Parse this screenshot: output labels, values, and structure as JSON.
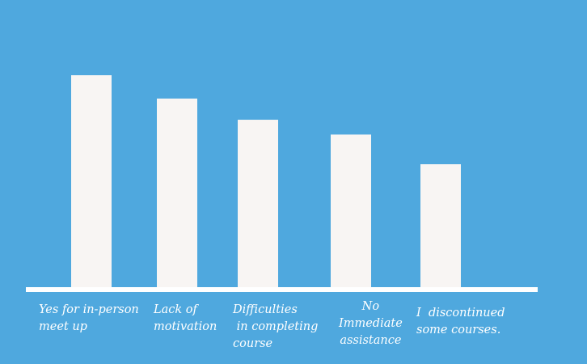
{
  "colors": {
    "background": "#4fa8de",
    "bar": "#f8f5f3",
    "axis": "#ffffff",
    "label": "#ffffff"
  },
  "chart_data": {
    "type": "bar",
    "title": "",
    "xlabel": "",
    "ylabel": "",
    "ylim": [
      0,
      100
    ],
    "grid": false,
    "legend": "none",
    "categories": [
      "Yes for in-person\nmeet up",
      "Lack of\nmotivation",
      "Difficulties\n in completing\ncourse",
      "No\nImmediate\nassistance",
      "I  discontinued\nsome courses."
    ],
    "values": [
      100,
      89,
      79,
      72,
      58
    ]
  }
}
